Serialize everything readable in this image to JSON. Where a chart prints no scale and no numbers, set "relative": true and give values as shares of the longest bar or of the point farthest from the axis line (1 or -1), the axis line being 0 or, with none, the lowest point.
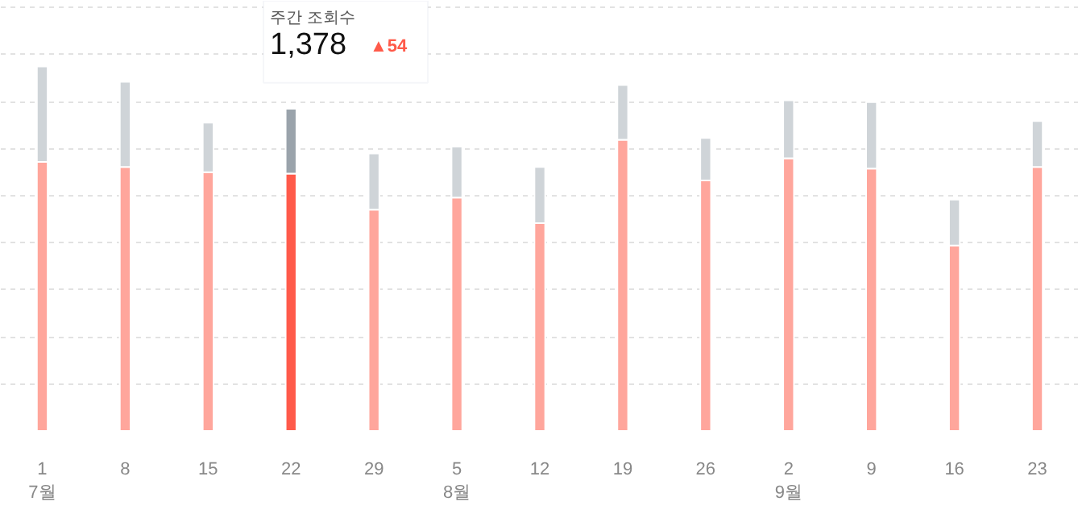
{
  "chart_data": {
    "type": "bar",
    "stacked": true,
    "relative": true,
    "grid": "y",
    "categories": [
      "1\n7월",
      "8",
      "15",
      "22",
      "29",
      "5\n8월",
      "12",
      "19",
      "26",
      "2\n9월",
      "9",
      "16",
      "23"
    ],
    "series": [
      {
        "colors": [
          "#ffa69c",
          "#ffa69c",
          "#ffa69c",
          "#ff5a4a",
          "#ffa69c",
          "#ffa69c",
          "#ffa69c",
          "#ffa69c",
          "#ffa69c",
          "#ffa69c",
          "#ffa69c",
          "#ffa69c",
          "#ffa69c"
        ],
        "values": [
          0.738,
          0.724,
          0.71,
          0.706,
          0.607,
          0.64,
          0.57,
          0.799,
          0.687,
          0.748,
          0.72,
          0.509,
          0.724
        ]
      },
      {
        "colors": [
          "#cfd4d8",
          "#cfd4d8",
          "#cfd4d8",
          "#9aa3ab",
          "#cfd4d8",
          "#cfd4d8",
          "#cfd4d8",
          "#cfd4d8",
          "#cfd4d8",
          "#cfd4d8",
          "#cfd4d8",
          "#cfd4d8",
          "#cfd4d8"
        ],
        "values": [
          0.262,
          0.234,
          0.136,
          0.178,
          0.154,
          0.14,
          0.154,
          0.15,
          0.117,
          0.159,
          0.182,
          0.126,
          0.126
        ]
      }
    ],
    "annotations": [
      "주간 조회수",
      "1,378",
      "▲54"
    ]
  }
}
